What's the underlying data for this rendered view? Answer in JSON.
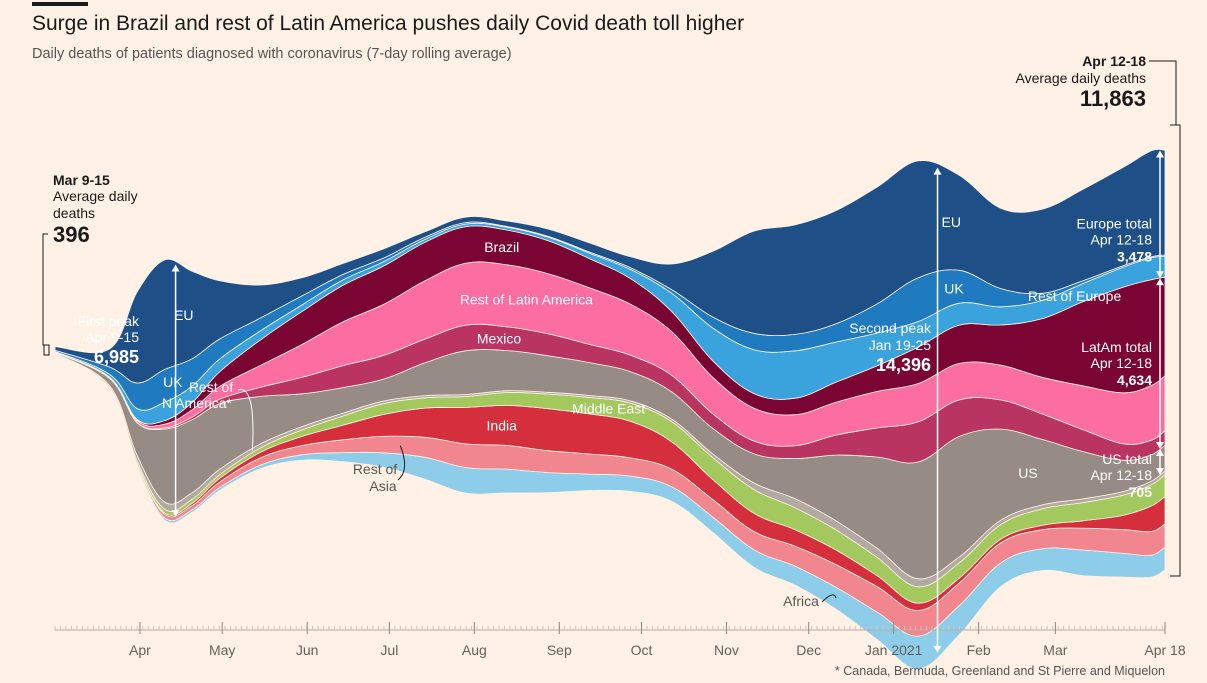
{
  "title": "Surge in Brazil and rest of Latin America pushes daily Covid death toll higher",
  "subtitle": "Daily deaths of patients diagnosed with coronavirus (7-day rolling average)",
  "footnote": "* Canada, Bermuda, Greenland and St Pierre and Miquelon",
  "colors": {
    "background": "#fff1e5",
    "EU": "#1e5087",
    "UK": "#1f7ac0",
    "Rest of Europe": "#3aa3de",
    "Brazil": "#7a0432",
    "Rest of Latin America": "#fb6e9f",
    "Mexico": "#ba3462",
    "US": "#968b85",
    "Rest of N America": "#b3a9a3",
    "Middle East": "#a3c85d",
    "India": "#d52f3d",
    "Rest of Asia": "#f2868e",
    "Africa": "#8dcdea"
  },
  "chart_data": {
    "type": "area",
    "subtype": "streamgraph",
    "units": "daily deaths, 7-day rolling average",
    "x_ticks": [
      "Apr",
      "May",
      "Jun",
      "Jul",
      "Aug",
      "Sep",
      "Oct",
      "Nov",
      "Dec",
      "Jan 2021",
      "Feb",
      "Mar",
      "Apr 18"
    ],
    "x_tick_days": [
      31,
      61,
      92,
      122,
      153,
      184,
      214,
      245,
      275,
      306,
      337,
      365,
      405
    ],
    "x_range_days": [
      0,
      405
    ],
    "sample_days": [
      0,
      20,
      30,
      40,
      50,
      60,
      75,
      90,
      105,
      120,
      135,
      150,
      165,
      180,
      195,
      210,
      225,
      240,
      255,
      270,
      285,
      300,
      315,
      330,
      345,
      360,
      375,
      390,
      400,
      405
    ],
    "series": [
      {
        "name": "Africa",
        "values": [
          0,
          20,
          40,
          60,
          70,
          80,
          100,
          150,
          250,
          400,
          600,
          700,
          650,
          550,
          450,
          420,
          400,
          420,
          480,
          520,
          600,
          750,
          900,
          800,
          650,
          600,
          700,
          650,
          600,
          620
        ]
      },
      {
        "name": "Rest of Asia",
        "values": [
          2,
          30,
          60,
          100,
          120,
          150,
          200,
          250,
          350,
          450,
          550,
          650,
          650,
          600,
          550,
          500,
          480,
          480,
          500,
          550,
          620,
          700,
          700,
          620,
          550,
          520,
          600,
          650,
          650,
          640
        ]
      },
      {
        "name": "India",
        "values": [
          0,
          5,
          15,
          35,
          60,
          100,
          150,
          250,
          400,
          600,
          800,
          1000,
          1100,
          1150,
          1100,
          1000,
          750,
          550,
          500,
          450,
          400,
          300,
          200,
          130,
          100,
          120,
          200,
          400,
          700,
          750
        ]
      },
      {
        "name": "Middle East",
        "values": [
          5,
          40,
          80,
          100,
          110,
          100,
          120,
          180,
          250,
          300,
          280,
          300,
          350,
          400,
          450,
          500,
          550,
          600,
          650,
          600,
          550,
          500,
          450,
          420,
          400,
          450,
          500,
          550,
          580,
          600
        ]
      },
      {
        "name": "Rest of N America",
        "values": [
          3,
          50,
          150,
          200,
          180,
          150,
          110,
          90,
          80,
          70,
          60,
          55,
          50,
          50,
          55,
          60,
          70,
          100,
          180,
          250,
          250,
          250,
          220,
          160,
          120,
          110,
          100,
          100,
          100,
          100
        ]
      },
      {
        "name": "US",
        "values": [
          20,
          200,
          900,
          2000,
          2000,
          1800,
          1300,
          900,
          700,
          600,
          900,
          1200,
          1100,
          1000,
          900,
          800,
          750,
          700,
          800,
          1100,
          1800,
          2500,
          3200,
          3300,
          2500,
          1800,
          1300,
          850,
          720,
          705
        ]
      },
      {
        "name": "Mexico",
        "values": [
          0,
          5,
          10,
          30,
          70,
          120,
          250,
          450,
          600,
          650,
          650,
          700,
          650,
          600,
          500,
          450,
          450,
          400,
          350,
          350,
          550,
          800,
          1100,
          1000,
          800,
          700,
          600,
          450,
          400,
          400
        ]
      },
      {
        "name": "Rest of Latin America",
        "values": [
          5,
          20,
          50,
          100,
          200,
          350,
          600,
          900,
          1200,
          1400,
          1600,
          1700,
          1700,
          1650,
          1550,
          1400,
          1200,
          1000,
          900,
          850,
          900,
          1000,
          1050,
          1000,
          950,
          1000,
          1200,
          1400,
          1500,
          1500
        ]
      },
      {
        "name": "Brazil",
        "values": [
          0,
          10,
          30,
          100,
          200,
          400,
          700,
          900,
          1000,
          1050,
          1050,
          1000,
          950,
          900,
          800,
          700,
          550,
          450,
          400,
          450,
          550,
          700,
          1000,
          1050,
          1100,
          1600,
          2300,
          2900,
          2900,
          2700
        ]
      },
      {
        "name": "Rest of Europe",
        "values": [
          20,
          80,
          300,
          500,
          450,
          350,
          250,
          180,
          150,
          120,
          80,
          70,
          80,
          100,
          150,
          250,
          500,
          900,
          1200,
          1300,
          1100,
          900,
          700,
          600,
          500,
          500,
          500,
          550,
          600,
          580
        ]
      },
      {
        "name": "UK",
        "values": [
          30,
          200,
          700,
          900,
          750,
          550,
          350,
          250,
          150,
          100,
          60,
          40,
          20,
          20,
          30,
          50,
          100,
          300,
          450,
          450,
          500,
          800,
          1200,
          900,
          500,
          200,
          80,
          40,
          30,
          30
        ]
      },
      {
        "name": "EU",
        "values": [
          100,
          500,
          2500,
          3000,
          2400,
          1600,
          900,
          500,
          300,
          250,
          150,
          150,
          150,
          200,
          250,
          300,
          700,
          1800,
          2800,
          3000,
          3100,
          3200,
          3200,
          2600,
          2200,
          2300,
          2500,
          2700,
          2900,
          2870
        ]
      }
    ],
    "annotations": [
      {
        "label": "Mar 9-15",
        "text": [
          "Average daily",
          "deaths"
        ],
        "value": "396",
        "day": 14
      },
      {
        "label": "First peak",
        "text": [
          "Apr 9-15"
        ],
        "value": "6,985",
        "day": 44
      },
      {
        "label": "Second peak",
        "text": [
          "Jan 19-25"
        ],
        "value": "14,396",
        "day": 322
      },
      {
        "label": "Apr 12-18",
        "text": [
          "Average daily deaths"
        ],
        "value": "11,863",
        "day": 402
      },
      {
        "label": "Europe total",
        "text": [
          "Apr 12-18"
        ],
        "value": "3,478"
      },
      {
        "label": "LatAm total",
        "text": [
          "Apr 12-18"
        ],
        "value": "4,634"
      },
      {
        "label": "US total",
        "text": [
          "Apr 12-18"
        ],
        "value": "705"
      }
    ],
    "area_labels": [
      {
        "series": "EU",
        "text": "EU",
        "day": 47
      },
      {
        "series": "UK",
        "text": "UK",
        "day": 43
      },
      {
        "series": "EU",
        "text": "EU",
        "day": 327
      },
      {
        "series": "UK",
        "text": "UK",
        "day": 328
      },
      {
        "series": "Rest of Europe",
        "text": "Rest of Europe",
        "day": 372
      },
      {
        "series": "Brazil",
        "text": "Brazil",
        "day": 163
      },
      {
        "series": "Rest of Latin America",
        "text": "Rest of Latin America",
        "day": 172
      },
      {
        "series": "Mexico",
        "text": "Mexico",
        "day": 162
      },
      {
        "series": "Middle East",
        "text": "Middle East",
        "day": 202
      },
      {
        "series": "India",
        "text": "India",
        "day": 163
      },
      {
        "series": "US",
        "text": "US",
        "day": 355
      }
    ],
    "callout_labels": [
      {
        "series": "Rest of N America",
        "lines": [
          "Rest of",
          "N America*"
        ]
      },
      {
        "series": "Rest of Asia",
        "lines": [
          "Rest of",
          "Asia"
        ]
      },
      {
        "series": "Africa",
        "lines": [
          "Africa"
        ]
      }
    ]
  }
}
